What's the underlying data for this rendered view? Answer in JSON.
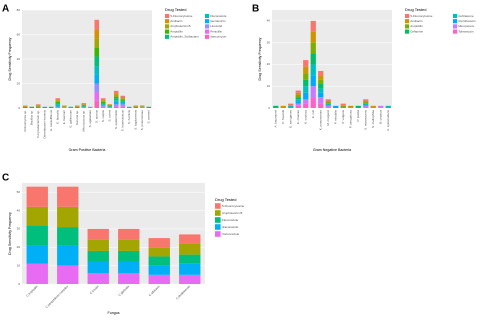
{
  "chart_data": [
    {
      "type": "bar",
      "panel": "A",
      "x_label": "Gram Positive Bacteria",
      "y_label": "Drug Sensitivity Frequency",
      "legend_title": "Drug Tested",
      "categories": [
        "Actinomyces sp.",
        "Bacillus sp.",
        "Corynebacterium sp.",
        "Dermabacter hominis",
        "E. casseliflavus",
        "E. faecalis",
        "E. faecium",
        "E. gallinarum",
        "Kocuria sp.",
        "Micrococcus sp.",
        "S. agalactiae",
        "S. aureus",
        "S. capitis",
        "S. cohnii",
        "S. epidermidis",
        "S. haemolyticus",
        "S. hominis",
        "S. lugdunensis",
        "S. pneumoniae",
        "S. warneri"
      ],
      "series": [
        {
          "name": "5-Fluorocytosine",
          "color": "#F8766D",
          "values": [
            0,
            0,
            1,
            0,
            0,
            1,
            0,
            0,
            0,
            1,
            0,
            8,
            1,
            0,
            2,
            1,
            0,
            0,
            0,
            0
          ]
        },
        {
          "name": "Amikacin",
          "color": "#D89000",
          "values": [
            1,
            0,
            0,
            0,
            0,
            1,
            0,
            0,
            1,
            0,
            0,
            7,
            1,
            1,
            1,
            1,
            0,
            1,
            0,
            0
          ]
        },
        {
          "name": "Amphotericin B",
          "color": "#A3A500",
          "values": [
            0,
            0,
            1,
            0,
            0,
            1,
            1,
            0,
            0,
            1,
            0,
            8,
            1,
            0,
            2,
            1,
            0,
            0,
            1,
            0
          ]
        },
        {
          "name": "Ampicillin",
          "color": "#39B600",
          "values": [
            0,
            1,
            0,
            0,
            1,
            1,
            0,
            0,
            0,
            0,
            0,
            7,
            1,
            0,
            1,
            1,
            0,
            0,
            0,
            0
          ]
        },
        {
          "name": "Ampicillin_Sulbactam",
          "color": "#00BF7D",
          "values": [
            1,
            0,
            0,
            0,
            0,
            1,
            0,
            0,
            0,
            1,
            0,
            8,
            1,
            1,
            2,
            1,
            0,
            0,
            0,
            1
          ]
        },
        {
          "name": "Fluconazole",
          "color": "#00BFC4",
          "values": [
            0,
            0,
            1,
            0,
            0,
            1,
            0,
            1,
            0,
            0,
            0,
            7,
            1,
            0,
            1,
            1,
            1,
            0,
            0,
            0
          ]
        },
        {
          "name": "Gentamicin",
          "color": "#00B0F6",
          "values": [
            0,
            0,
            0,
            1,
            0,
            1,
            0,
            0,
            1,
            0,
            0,
            7,
            0,
            0,
            2,
            1,
            0,
            1,
            0,
            0
          ]
        },
        {
          "name": "Linezolid",
          "color": "#9590FF",
          "values": [
            0,
            0,
            0,
            0,
            0,
            0,
            1,
            0,
            0,
            1,
            1,
            7,
            1,
            1,
            1,
            1,
            0,
            0,
            1,
            0
          ]
        },
        {
          "name": "Penicillin",
          "color": "#E76BF3",
          "values": [
            0,
            0,
            0,
            0,
            0,
            1,
            0,
            0,
            0,
            0,
            0,
            7,
            1,
            0,
            1,
            1,
            0,
            0,
            0,
            0
          ]
        },
        {
          "name": "Vancomycin",
          "color": "#FF62BC",
          "values": [
            0,
            0,
            0,
            0,
            0,
            0,
            0,
            0,
            0,
            0,
            0,
            6,
            0,
            0,
            1,
            1,
            0,
            0,
            0,
            0
          ]
        }
      ],
      "ylim": [
        0,
        80
      ],
      "yticks": [
        0,
        20,
        40,
        60,
        80
      ],
      "grid": true
    },
    {
      "type": "bar",
      "panel": "B",
      "x_label": "Gram Negative Bacteria",
      "y_label": "Drug Sensitivity Frequency",
      "legend_title": "Drug Tested",
      "categories": [
        "A. baumannii",
        "C. freundii",
        "E. aerogenes",
        "E. cloacae",
        "K. oxytoca",
        "E. coli",
        "K. pneumoniae",
        "M. morganii",
        "P. mirabilis",
        "P. vulgaris",
        "P. aeruginosa",
        "P. putida",
        "S. marcescens",
        "S. maltophilia",
        "B. cepacia",
        "A. xylosoxidans"
      ],
      "series": [
        {
          "name": "5-Fluorocytosine",
          "color": "#F8766D",
          "values": [
            0,
            0,
            1,
            1,
            3,
            5,
            2,
            1,
            0,
            1,
            0,
            0,
            1,
            0,
            0,
            0
          ]
        },
        {
          "name": "Amikacin",
          "color": "#CD9600",
          "values": [
            0,
            1,
            0,
            1,
            3,
            5,
            2,
            0,
            0,
            0,
            1,
            0,
            0,
            1,
            0,
            0
          ]
        },
        {
          "name": "Ampicillin",
          "color": "#7CAE00",
          "values": [
            0,
            0,
            0,
            1,
            3,
            5,
            2,
            1,
            0,
            1,
            0,
            0,
            1,
            0,
            0,
            0
          ]
        },
        {
          "name": "Cefepime",
          "color": "#00BE67",
          "values": [
            1,
            0,
            0,
            1,
            3,
            5,
            2,
            0,
            0,
            0,
            0,
            1,
            0,
            0,
            0,
            0
          ]
        },
        {
          "name": "Ceftriaxone",
          "color": "#00BFC4",
          "values": [
            0,
            0,
            1,
            1,
            3,
            5,
            2,
            1,
            0,
            0,
            0,
            0,
            1,
            0,
            0,
            1
          ]
        },
        {
          "name": "Ciprofloxacin",
          "color": "#00A9FF",
          "values": [
            0,
            0,
            0,
            1,
            3,
            5,
            2,
            0,
            1,
            0,
            0,
            0,
            0,
            0,
            0,
            0
          ]
        },
        {
          "name": "Meropenem",
          "color": "#C77CFF",
          "values": [
            0,
            0,
            0,
            1,
            2,
            5,
            3,
            1,
            0,
            0,
            0,
            0,
            1,
            0,
            1,
            0
          ]
        },
        {
          "name": "Tobramycin",
          "color": "#FF61CC",
          "values": [
            0,
            0,
            0,
            1,
            2,
            5,
            2,
            0,
            0,
            0,
            0,
            0,
            0,
            0,
            0,
            0
          ]
        }
      ],
      "ylim": [
        0,
        45
      ],
      "yticks": [
        0,
        10,
        20,
        30,
        40
      ],
      "grid": true
    },
    {
      "type": "bar",
      "panel": "C",
      "x_label": "Fungus",
      "y_label": "Drug Sensitivity Frequency",
      "legend_title": "Drug Tested",
      "categories": [
        "C.tropicalis",
        "C.parapsilosis complex",
        "C.krusei",
        "C.glabrata",
        "C.albicans",
        "C.dubliniensis"
      ],
      "series": [
        {
          "name": "5-Fluorocytosine",
          "color": "#F8766D",
          "values": [
            11,
            11,
            6,
            6,
            5,
            5
          ]
        },
        {
          "name": "Amphotericin B",
          "color": "#A3A500",
          "values": [
            10,
            11,
            6,
            6,
            5,
            6
          ]
        },
        {
          "name": "Fluconazole",
          "color": "#00BF7D",
          "values": [
            11,
            10,
            6,
            6,
            5,
            5
          ]
        },
        {
          "name": "Itraconazole",
          "color": "#00B0F6",
          "values": [
            10,
            11,
            6,
            6,
            5,
            6
          ]
        },
        {
          "name": "Voriconazole",
          "color": "#E76BF3",
          "values": [
            11,
            10,
            6,
            6,
            5,
            5
          ]
        }
      ],
      "ylim": [
        0,
        55
      ],
      "yticks": [
        0,
        10,
        20,
        30,
        40,
        50
      ],
      "grid": true
    }
  ]
}
